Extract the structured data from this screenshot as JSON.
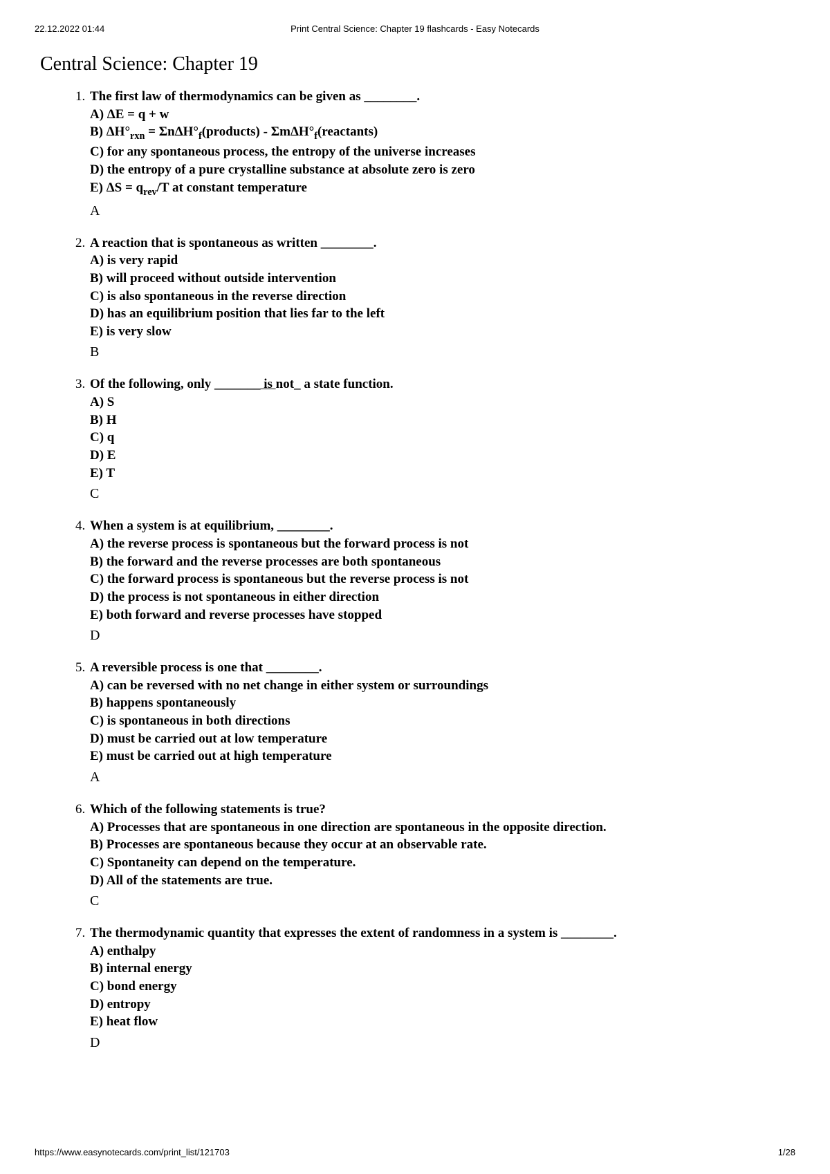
{
  "header": {
    "timestamp": "22.12.2022 01:44",
    "center_title": "Print Central Science: Chapter 19 flashcards - Easy Notecards"
  },
  "title": "Central Science: Chapter 19",
  "questions": [
    {
      "stem": "The first law of thermodynamics can be given as ________.",
      "options": [
        "A) ΔE = q + w",
        "B) ΔH°|rxn| = ΣnΔH°|f|(products) - ΣmΔH°|f|(reactants)",
        "C) for any spontaneous process, the entropy of the universe increases",
        "D) the entropy of a pure crystalline substance at absolute zero is zero",
        "E) ΔS = q|rev|/T at constant temperature"
      ],
      "answer": "A"
    },
    {
      "stem": "A reaction that is spontaneous as written ________.",
      "options": [
        "A) is very rapid",
        "B) will proceed without outside intervention",
        "C) is also spontaneous in the reverse direction",
        "D) has an equilibrium position that lies far to the left",
        "E) is very slow"
      ],
      "answer": "B"
    },
    {
      "stem": "Of the following, only ________ is _not_ a state function.",
      "options": [
        "A) S",
        "B) H",
        "C) q",
        "D) E",
        "E) T"
      ],
      "answer": "C"
    },
    {
      "stem": "When a system is at equilibrium, ________.",
      "options": [
        "A) the reverse process is spontaneous but the forward process is not",
        "B) the forward and the reverse processes are both spontaneous",
        "C) the forward process is spontaneous but the reverse process is not",
        "D) the process is not spontaneous in either direction",
        "E) both forward and reverse processes have stopped"
      ],
      "answer": "D"
    },
    {
      "stem": "A reversible process is one that ________.",
      "options": [
        "A) can be reversed with no net change in either system or surroundings",
        "B) happens spontaneously",
        "C) is spontaneous in both directions",
        "D) must be carried out at low temperature",
        "E) must be carried out at high temperature"
      ],
      "answer": "A"
    },
    {
      "stem": "Which of the following statements is true?",
      "options": [
        "A) Processes that are spontaneous in one direction are spontaneous in the opposite direction.",
        "B) Processes are spontaneous because they occur at an observable rate.",
        "C) Spontaneity can depend on the temperature.",
        "D) All of the statements are true."
      ],
      "answer": "C"
    },
    {
      "stem": "The thermodynamic quantity that expresses the extent of randomness in a system is ________.",
      "options": [
        "A) enthalpy",
        "B) internal energy",
        "C) bond energy",
        "D) entropy",
        "E) heat flow"
      ],
      "answer": "D"
    }
  ],
  "footer": {
    "url": "https://www.easynotecards.com/print_list/121703",
    "page": "1/28"
  }
}
